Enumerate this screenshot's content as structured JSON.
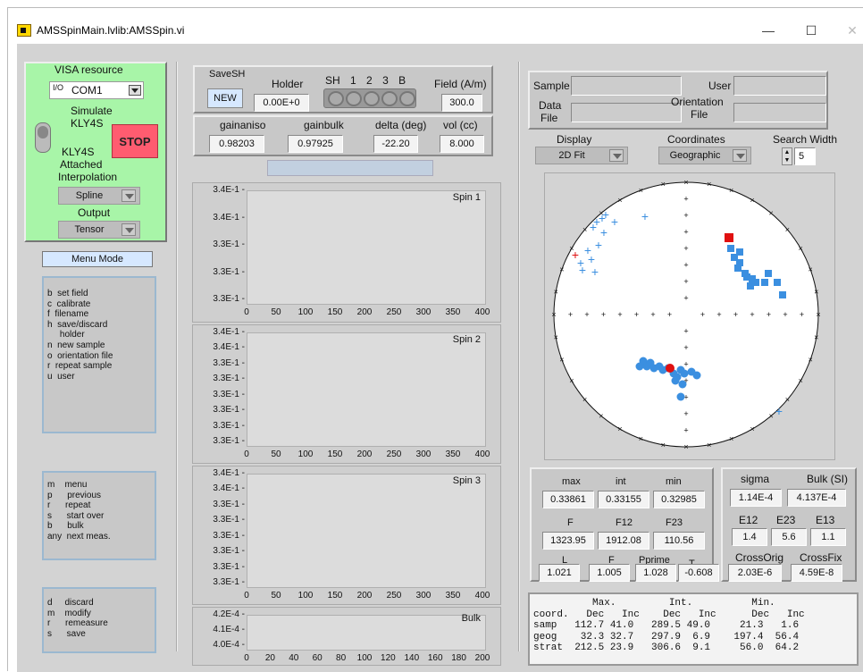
{
  "window": {
    "title": "AMSSpinMain.lvlib:AMSSpin.vi",
    "minimize": "—",
    "maximize": "☐",
    "close": "✕"
  },
  "visa": {
    "label": "VISA resource",
    "value": "COM1",
    "simulate": "Simulate",
    "sim_device": "KLY4S",
    "kly_attached_line1": "KLY4S",
    "kly_attached_line2": "Attached",
    "stop": "STOP",
    "interp_label": "Interpolation",
    "interp_value": "Spline",
    "output_label": "Output",
    "output_value": "Tensor"
  },
  "menu_mode": "Menu Mode",
  "commands1": [
    "b  set field",
    "c  calibrate",
    "f  filename",
    "h  save/discard",
    "     holder",
    "n  new sample",
    "o  orientation file",
    "r  repeat sample",
    "u  user"
  ],
  "commands2": [
    "m    menu",
    "p      previous",
    "r      repeat",
    "s      start over",
    "b      bulk",
    "any  next meas."
  ],
  "commands3": [
    "d     discard",
    "m    modify",
    "r      remeasure",
    "s      save"
  ],
  "top": {
    "savesh": "SaveSH",
    "new": "NEW",
    "holder_label": "Holder",
    "holder_value": "0.00E+0",
    "sh_labels": [
      "SH",
      "1",
      "2",
      "3",
      "B"
    ],
    "field_label": "Field (A/m)",
    "field_value": "300.0",
    "gainaniso_label": "gainaniso",
    "gainaniso": "0.98203",
    "gainbulk_label": "gainbulk",
    "gainbulk": "0.97925",
    "delta_label": "delta (deg)",
    "delta": "-22.20",
    "vol_label": "vol (cc)",
    "vol": "8.000"
  },
  "graphs": [
    {
      "name": "Spin 1",
      "yticks": [
        "3.4E-1",
        "3.4E-1",
        "3.3E-1",
        "3.3E-1",
        "3.3E-1"
      ],
      "xticks": [
        "0",
        "50",
        "100",
        "150",
        "200",
        "250",
        "300",
        "350",
        "400"
      ]
    },
    {
      "name": "Spin 2",
      "yticks": [
        "3.4E-1",
        "3.4E-1",
        "3.3E-1",
        "3.3E-1",
        "3.3E-1",
        "3.3E-1",
        "3.3E-1",
        "3.3E-1"
      ],
      "xticks": [
        "0",
        "50",
        "100",
        "150",
        "200",
        "250",
        "300",
        "350",
        "400"
      ]
    },
    {
      "name": "Spin 3",
      "yticks": [
        "3.4E-1",
        "3.4E-1",
        "3.3E-1",
        "3.3E-1",
        "3.3E-1",
        "3.3E-1",
        "3.3E-1",
        "3.3E-1"
      ],
      "xticks": [
        "0",
        "50",
        "100",
        "150",
        "200",
        "250",
        "300",
        "350",
        "400"
      ]
    },
    {
      "name": "Bulk",
      "yticks": [
        "4.2E-4",
        "4.1E-4",
        "4.0E-4"
      ],
      "xticks": [
        "0",
        "20",
        "40",
        "60",
        "80",
        "100",
        "120",
        "140",
        "160",
        "180",
        "200"
      ]
    }
  ],
  "sample": {
    "sample_label": "Sample",
    "user_label": "User",
    "data_file_line1": "Data",
    "data_file_line2": "File",
    "orient_line1": "Orientation",
    "orient_line2": "File"
  },
  "display": {
    "display_label": "Display",
    "display_value": "2D Fit",
    "coords_label": "Coordinates",
    "coords_value": "Geographic",
    "search_label": "Search Width",
    "search_value": "5"
  },
  "stats": {
    "max_label": "max",
    "int_label": "int",
    "min_label": "min",
    "max": "0.33861",
    "int": "0.33155",
    "min": "0.32985",
    "sigma_label": "sigma",
    "sigma": "1.14E-4",
    "bulk_label": "Bulk (SI)",
    "bulk": "4.137E-4",
    "F_label": "F",
    "F12_label": "F12",
    "F23_label": "F23",
    "F": "1323.95",
    "F12": "1912.08",
    "F23": "110.56",
    "E12_label": "E12",
    "E23_label": "E23",
    "E13_label": "E13",
    "E12": "1.4",
    "E23": "5.6",
    "E13": "1.1",
    "L_label": "L",
    "F2_label": "F",
    "Pprime_label": "Pprime",
    "T_label": "T",
    "L": "1.021",
    "F2": "1.005",
    "Pprime": "1.028",
    "T": "-0.608",
    "crossorig_label": "CrossOrig",
    "crossfix_label": "CrossFix",
    "crossorig": "2.03E-6",
    "crossfix": "4.59E-8"
  },
  "table": {
    "header1": "          Max.         Int.          Min.",
    "header2": "coord.   Dec   Inc    Dec   Inc      Dec   Inc",
    "rows": [
      "samp   112.7 41.0   289.5 49.0     21.3   1.6",
      "geog    32.3 32.7   297.9  6.9    197.4  56.4",
      "strat  212.5 23.9   306.6  9.1     56.0  64.2"
    ]
  },
  "colors": {
    "green_panel": "#a8f5a8",
    "stop": "#ff5c70",
    "blue_marker": "#3b8fe0",
    "red_marker": "#e01010"
  }
}
